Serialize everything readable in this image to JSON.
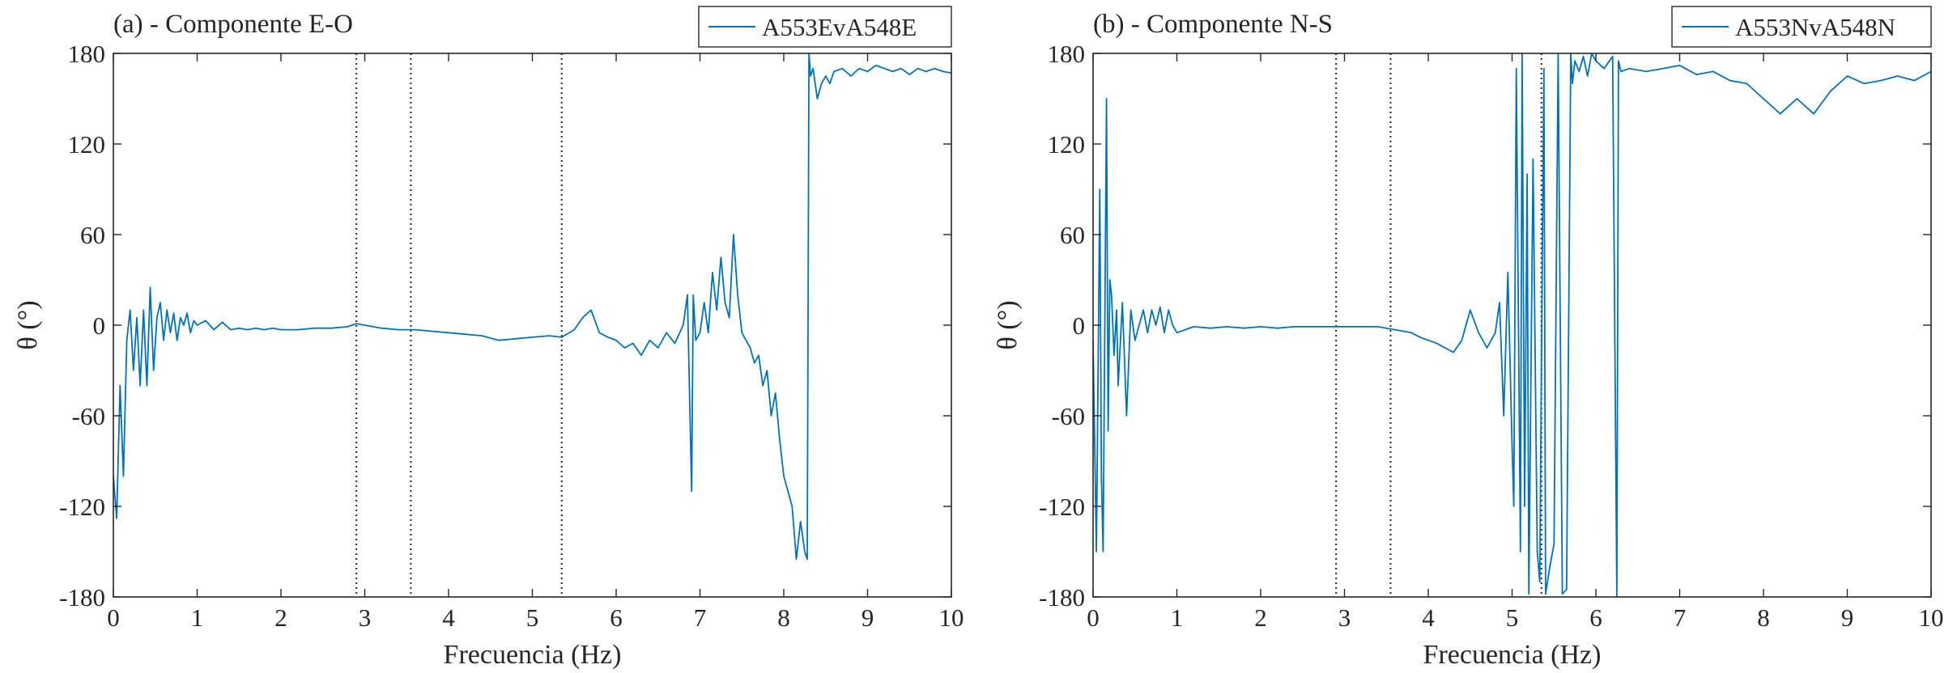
{
  "colors": {
    "series": "#0072BD",
    "axes": "#262626",
    "vlines": "#262626"
  },
  "chart_data": [
    {
      "type": "line",
      "title": "(a) - Componente E-O",
      "xlabel": "Frecuencia (Hz)",
      "ylabel": "θ (°)",
      "xlim": [
        0,
        10
      ],
      "ylim": [
        -180,
        180
      ],
      "xticks": [
        0,
        1,
        2,
        3,
        4,
        5,
        6,
        7,
        8,
        9,
        10
      ],
      "xtick_labels": [
        "0",
        "1",
        "2",
        "3",
        "4",
        "5",
        "6",
        "7",
        "8",
        "9",
        "10"
      ],
      "yticks": [
        -180,
        -120,
        -60,
        0,
        60,
        120,
        180
      ],
      "ytick_labels": [
        "-180",
        "-120",
        "-60",
        "0",
        "60",
        "120",
        "180"
      ],
      "legend": "top-right",
      "grid": false,
      "vlines": [
        2.9,
        3.55,
        5.35
      ],
      "series": [
        {
          "name": "A553EvA548E",
          "x": [
            0,
            0.04,
            0.08,
            0.12,
            0.16,
            0.2,
            0.24,
            0.28,
            0.32,
            0.36,
            0.4,
            0.44,
            0.48,
            0.52,
            0.56,
            0.6,
            0.64,
            0.68,
            0.72,
            0.76,
            0.8,
            0.84,
            0.88,
            0.92,
            0.96,
            1.0,
            1.1,
            1.2,
            1.3,
            1.4,
            1.5,
            1.6,
            1.7,
            1.8,
            1.9,
            2.0,
            2.2,
            2.4,
            2.6,
            2.8,
            2.9,
            3.0,
            3.2,
            3.4,
            3.6,
            3.8,
            4.0,
            4.2,
            4.4,
            4.6,
            4.8,
            5.0,
            5.2,
            5.35,
            5.5,
            5.6,
            5.7,
            5.8,
            5.9,
            6.0,
            6.1,
            6.2,
            6.3,
            6.4,
            6.5,
            6.6,
            6.7,
            6.8,
            6.85,
            6.9,
            6.92,
            6.95,
            7.0,
            7.05,
            7.1,
            7.15,
            7.2,
            7.25,
            7.3,
            7.35,
            7.4,
            7.45,
            7.5,
            7.55,
            7.6,
            7.65,
            7.7,
            7.75,
            7.8,
            7.85,
            7.9,
            7.95,
            8.0,
            8.05,
            8.1,
            8.15,
            8.2,
            8.25,
            8.28,
            8.3,
            8.32,
            8.35,
            8.4,
            8.45,
            8.5,
            8.55,
            8.6,
            8.7,
            8.8,
            8.9,
            9.0,
            9.1,
            9.2,
            9.3,
            9.4,
            9.5,
            9.6,
            9.7,
            9.8,
            9.9,
            10.0
          ],
          "values": [
            -100,
            -128,
            -40,
            -100,
            -10,
            10,
            -30,
            5,
            -40,
            10,
            -40,
            25,
            -30,
            5,
            15,
            -10,
            10,
            -5,
            8,
            -10,
            5,
            0,
            8,
            -5,
            3,
            0,
            3,
            -3,
            2,
            -3,
            -2,
            -3,
            -2,
            -3,
            -2,
            -3,
            -3,
            -2,
            -2,
            -1,
            1,
            0,
            -2,
            -3,
            -3,
            -4,
            -5,
            -6,
            -7,
            -10,
            -9,
            -8,
            -7,
            -8,
            -3,
            5,
            10,
            -5,
            -8,
            -10,
            -15,
            -12,
            -20,
            -10,
            -15,
            -5,
            -12,
            0,
            20,
            -110,
            20,
            -10,
            -5,
            15,
            -5,
            35,
            10,
            45,
            15,
            5,
            60,
            20,
            -5,
            -10,
            -15,
            -25,
            -20,
            -40,
            -30,
            -60,
            -45,
            -75,
            -100,
            -110,
            -120,
            -155,
            -130,
            -150,
            -155,
            180,
            165,
            170,
            150,
            160,
            165,
            160,
            168,
            170,
            165,
            170,
            168,
            172,
            170,
            168,
            170,
            166,
            170,
            168,
            170,
            168,
            167
          ]
        }
      ]
    },
    {
      "type": "line",
      "title": "(b) - Componente N-S",
      "xlabel": "Frecuencia (Hz)",
      "ylabel": "θ (°)",
      "xlim": [
        0,
        10
      ],
      "ylim": [
        -180,
        180
      ],
      "xticks": [
        0,
        1,
        2,
        3,
        4,
        5,
        6,
        7,
        8,
        9,
        10
      ],
      "xtick_labels": [
        "0",
        "1",
        "2",
        "3",
        "4",
        "5",
        "6",
        "7",
        "8",
        "9",
        "10"
      ],
      "yticks": [
        -180,
        -120,
        -60,
        0,
        60,
        120,
        180
      ],
      "ytick_labels": [
        "-180",
        "-120",
        "-60",
        "0",
        "60",
        "120",
        "180"
      ],
      "legend": "top-right",
      "grid": false,
      "vlines": [
        2.9,
        3.55,
        5.35
      ],
      "series": [
        {
          "name": "A553NvA548N",
          "x": [
            0,
            0.04,
            0.08,
            0.1,
            0.12,
            0.14,
            0.16,
            0.18,
            0.2,
            0.22,
            0.25,
            0.28,
            0.3,
            0.35,
            0.4,
            0.45,
            0.5,
            0.55,
            0.6,
            0.65,
            0.7,
            0.75,
            0.8,
            0.85,
            0.9,
            0.95,
            1.0,
            1.1,
            1.2,
            1.4,
            1.6,
            1.8,
            2.0,
            2.2,
            2.4,
            2.6,
            2.8,
            3.0,
            3.2,
            3.4,
            3.6,
            3.8,
            3.9,
            4.0,
            4.1,
            4.2,
            4.3,
            4.4,
            4.5,
            4.6,
            4.7,
            4.8,
            4.85,
            4.9,
            4.95,
            5.0,
            5.02,
            5.05,
            5.1,
            5.12,
            5.15,
            5.18,
            5.2,
            5.25,
            5.3,
            5.33,
            5.35,
            5.38,
            5.4,
            5.45,
            5.5,
            5.55,
            5.6,
            5.65,
            5.7,
            5.72,
            5.75,
            5.8,
            5.85,
            5.9,
            5.95,
            6.0,
            6.1,
            6.2,
            6.25,
            6.27,
            6.3,
            6.4,
            6.6,
            6.8,
            7.0,
            7.2,
            7.4,
            7.6,
            7.8,
            8.0,
            8.2,
            8.4,
            8.6,
            8.8,
            9.0,
            9.2,
            9.4,
            9.6,
            9.8,
            10.0
          ],
          "values": [
            -10,
            -150,
            90,
            -100,
            -150,
            0,
            150,
            -70,
            30,
            20,
            -20,
            10,
            -40,
            15,
            -60,
            10,
            -10,
            0,
            10,
            -5,
            10,
            0,
            12,
            -5,
            10,
            0,
            -5,
            -3,
            -1,
            -2,
            -1,
            -2,
            -1,
            -2,
            -1,
            -1,
            -1,
            -1,
            -1,
            -1,
            -3,
            -5,
            -8,
            -10,
            -12,
            -15,
            -18,
            -10,
            10,
            -5,
            -15,
            -5,
            15,
            -60,
            35,
            -80,
            -120,
            170,
            -150,
            180,
            -120,
            100,
            -178,
            110,
            -150,
            -170,
            -30,
            170,
            -178,
            -160,
            -145,
            180,
            -178,
            -175,
            180,
            160,
            175,
            168,
            178,
            165,
            180,
            175,
            170,
            178,
            -180,
            175,
            168,
            170,
            168,
            170,
            172,
            166,
            168,
            162,
            160,
            150,
            140,
            150,
            140,
            155,
            165,
            160,
            162,
            165,
            162,
            168
          ]
        }
      ]
    }
  ]
}
